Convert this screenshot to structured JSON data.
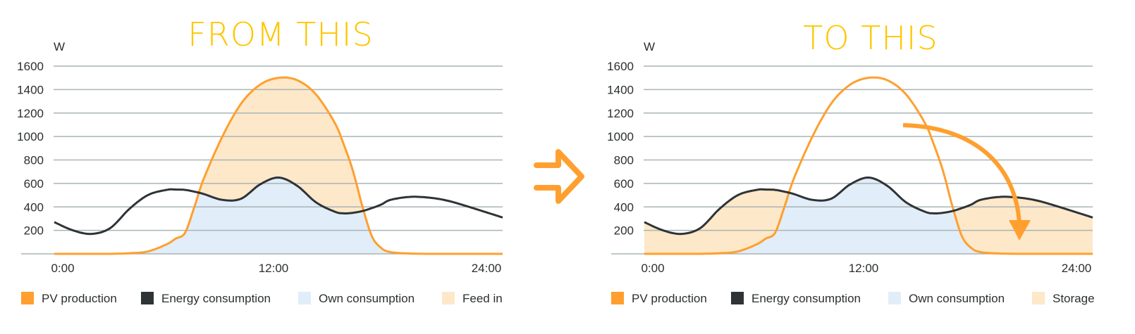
{
  "colors": {
    "pv": "#ff9f2f",
    "consumption": "#2e3336",
    "own": "#e1edf8",
    "feed": "#fde8c9",
    "grid": "#a9b4b6",
    "title": "#ffc600",
    "arrow": "#ff9f2f"
  },
  "transition_arrow": {
    "icon": "double-line-right-arrow-icon"
  },
  "chart_data": [
    {
      "type": "area",
      "title": "FROM THIS",
      "ylabel": "W",
      "xlabel": "",
      "ylim": [
        0,
        1600
      ],
      "yticks": [
        200,
        400,
        600,
        800,
        1000,
        1200,
        1400,
        1600
      ],
      "ytick_labels": [
        "200",
        "400",
        "600",
        "800",
        "1000",
        "1200",
        "1400",
        "1600"
      ],
      "xlim": [
        0,
        24
      ],
      "xtick_labels": [
        "0:00",
        "12:00",
        "24:00"
      ],
      "grid": true,
      "legend_position": "bottom",
      "legend": [
        "PV production",
        "Energy consumption",
        "Own consumption",
        "Feed in"
      ],
      "fill_mode": "feed_in",
      "x": [
        0,
        1,
        2,
        3,
        4,
        5,
        6,
        6.5,
        7,
        7.5,
        8,
        9,
        10,
        11,
        12,
        13,
        14,
        15,
        15.5,
        16,
        16.5,
        17,
        17.5,
        18,
        19,
        20,
        21,
        22,
        23,
        24
      ],
      "series": [
        {
          "name": "PV production",
          "values": [
            0,
            0,
            0,
            0,
            5,
            20,
            80,
            130,
            180,
            400,
            640,
            1000,
            1280,
            1440,
            1500,
            1480,
            1360,
            1120,
            930,
            700,
            400,
            150,
            50,
            15,
            3,
            0,
            0,
            0,
            0,
            0
          ]
        },
        {
          "name": "Energy consumption",
          "values": [
            270,
            200,
            170,
            220,
            380,
            500,
            545,
            548,
            545,
            530,
            510,
            460,
            470,
            590,
            650,
            580,
            440,
            360,
            345,
            350,
            365,
            390,
            420,
            460,
            485,
            480,
            455,
            410,
            360,
            310
          ]
        }
      ]
    },
    {
      "type": "area",
      "title": "TO THIS",
      "ylabel": "W",
      "xlabel": "",
      "ylim": [
        0,
        1600
      ],
      "yticks": [
        200,
        400,
        600,
        800,
        1000,
        1200,
        1400,
        1600
      ],
      "ytick_labels": [
        "200",
        "400",
        "600",
        "800",
        "1000",
        "1200",
        "1400",
        "1600"
      ],
      "xlim": [
        0,
        24
      ],
      "xtick_labels": [
        "0:00",
        "12:00",
        "24:00"
      ],
      "grid": true,
      "legend_position": "bottom",
      "legend": [
        "PV production",
        "Energy consumption",
        "Own consumption",
        "Storage"
      ],
      "fill_mode": "storage",
      "annotation": "curved arrow from PV surplus (~14:00, 1100 W) down to evening consumption (~18:30, 200 W)",
      "x": [
        0,
        1,
        2,
        3,
        4,
        5,
        6,
        6.5,
        7,
        7.5,
        8,
        9,
        10,
        11,
        12,
        13,
        14,
        15,
        15.5,
        16,
        16.5,
        17,
        17.5,
        18,
        19,
        20,
        21,
        22,
        23,
        24
      ],
      "series": [
        {
          "name": "PV production",
          "values": [
            0,
            0,
            0,
            0,
            5,
            20,
            80,
            130,
            180,
            400,
            640,
            1000,
            1280,
            1440,
            1500,
            1480,
            1360,
            1120,
            930,
            700,
            400,
            150,
            50,
            15,
            3,
            0,
            0,
            0,
            0,
            0
          ]
        },
        {
          "name": "Energy consumption",
          "values": [
            270,
            200,
            170,
            220,
            380,
            500,
            545,
            548,
            545,
            530,
            510,
            460,
            470,
            590,
            650,
            580,
            440,
            360,
            345,
            350,
            365,
            390,
            420,
            460,
            485,
            480,
            455,
            410,
            360,
            310
          ]
        }
      ]
    }
  ]
}
